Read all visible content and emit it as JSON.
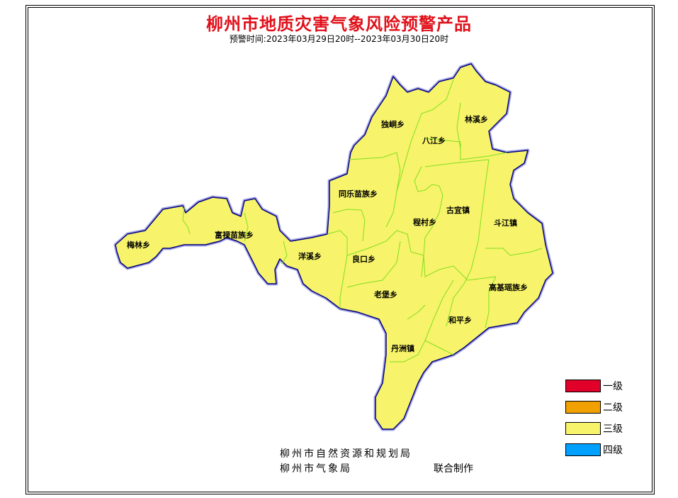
{
  "title": "柳州市地质灾害气象风险预警产品",
  "subtitle": "预警时间:2023年03月29日20时--2023年03月30日20时",
  "map": {
    "fill_color": "#f7f36a",
    "border_color": "#000080",
    "internal_border_color": "#80e020",
    "towns": [
      {
        "name": "独峒乡",
        "level": "三级"
      },
      {
        "name": "林溪乡",
        "level": "三级"
      },
      {
        "name": "八江乡",
        "level": "三级"
      },
      {
        "name": "同乐苗族乡",
        "level": "三级"
      },
      {
        "name": "古宜镇",
        "level": "三级"
      },
      {
        "name": "程村乡",
        "level": "三级"
      },
      {
        "name": "斗江镇",
        "level": "三级"
      },
      {
        "name": "富禄苗族乡",
        "level": "三级"
      },
      {
        "name": "梅林乡",
        "level": "三级"
      },
      {
        "name": "洋溪乡",
        "level": "三级"
      },
      {
        "name": "良口乡",
        "level": "三级"
      },
      {
        "name": "老堡乡",
        "level": "三级"
      },
      {
        "name": "高基瑶族乡",
        "level": "三级"
      },
      {
        "name": "和平乡",
        "level": "三级"
      },
      {
        "name": "丹洲镇",
        "level": "三级"
      }
    ]
  },
  "legend": [
    {
      "label": "一级",
      "color": "#e0002a"
    },
    {
      "label": "二级",
      "color": "#f0a000"
    },
    {
      "label": "三级",
      "color": "#f7f36a"
    },
    {
      "label": "四级",
      "color": "#00a0ff"
    }
  ],
  "footer": {
    "line1": "柳州市自然资源和规划局",
    "line2": "柳州市气象局",
    "joint": "联合制作"
  }
}
